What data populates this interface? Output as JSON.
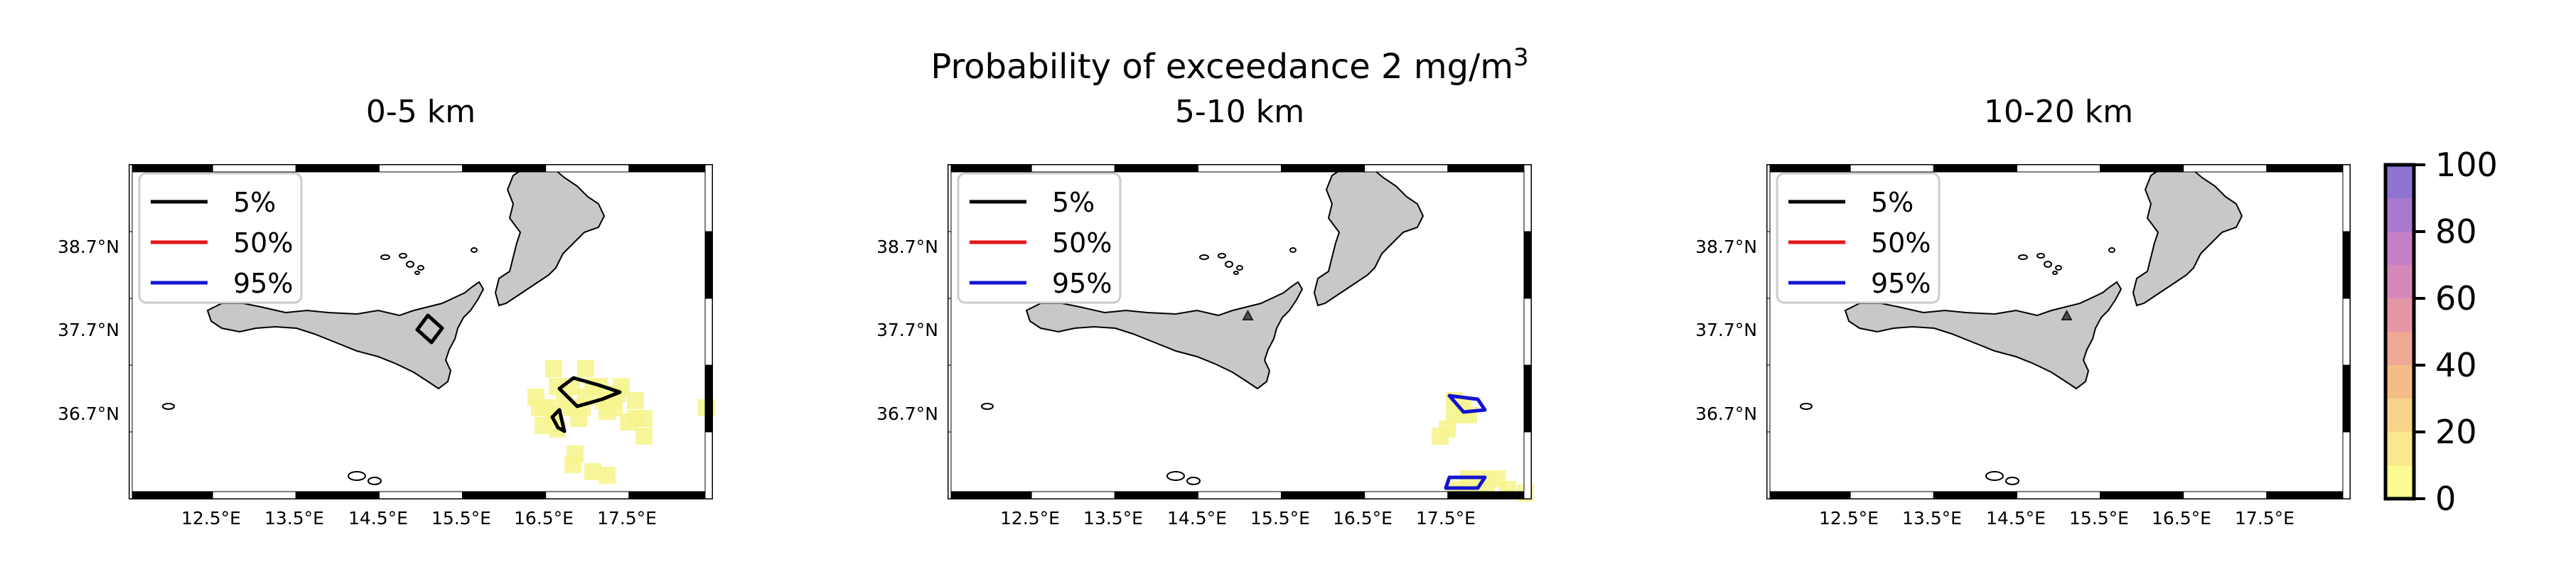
{
  "figure": {
    "suptitle": "Probability of exceedance 2 mg/m",
    "suptitle_sup": "3"
  },
  "legend": {
    "entries": [
      {
        "label": "5%",
        "color": "#000000"
      },
      {
        "label": "50%",
        "color": "#e8141a"
      },
      {
        "label": "95%",
        "color": "#1414d2"
      }
    ]
  },
  "axes": {
    "lat_ticks": [
      "38.7°N",
      "37.7°N",
      "36.7°N"
    ],
    "lon_ticks": [
      "12.5°E",
      "13.5°E",
      "14.5°E",
      "15.5°E",
      "16.5°E",
      "17.5°E"
    ]
  },
  "panels": [
    {
      "title": "0-5 km",
      "show_vent_marker": false
    },
    {
      "title": "5-10 km",
      "show_vent_marker": true
    },
    {
      "title": "10-20 km",
      "show_vent_marker": true
    }
  ],
  "colorbar": {
    "ticks": [
      "100",
      "80",
      "60",
      "40",
      "20",
      "0"
    ],
    "colors": [
      "#fbfb91",
      "#fbe88e",
      "#f8d48a",
      "#f4bd88",
      "#efa893",
      "#e596a6",
      "#d689b8",
      "#c47fc6",
      "#ab78cf",
      "#8f74d1"
    ],
    "range": [
      0,
      100
    ]
  },
  "colors": {
    "land": "#c8c8c8",
    "frame": "#000000",
    "vent_marker": "#4d4d4d"
  }
}
